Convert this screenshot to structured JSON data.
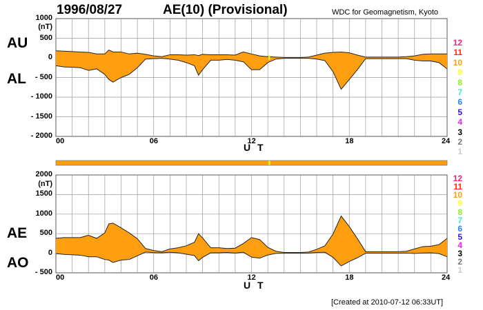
{
  "header": {
    "date": "1996/08/27",
    "title": "AE(10) (Provisional)",
    "source": "WDC for Geomagnetism, Kyoto"
  },
  "footer": {
    "created": "[Created at 2010-07-12 06:33UT]"
  },
  "colors": {
    "fill": "#ff9f10",
    "line": "#222222",
    "grid": "#999999",
    "bar": "#ff9f10",
    "bar_highlight": "#ffff20"
  },
  "station_legend": [
    {
      "label": "12",
      "color": "#ff1a7a"
    },
    {
      "label": "11",
      "color": "#ff2a10"
    },
    {
      "label": "10",
      "color": "#ff9f10"
    },
    {
      "label": "9",
      "color": "#ffff20"
    },
    {
      "label": "8",
      "color": "#90f020"
    },
    {
      "label": "7",
      "color": "#30f0d0"
    },
    {
      "label": "6",
      "color": "#2a80ff"
    },
    {
      "label": "5",
      "color": "#2a10f0"
    },
    {
      "label": "4",
      "color": "#f020f0"
    },
    {
      "label": "3",
      "color": "#000000"
    },
    {
      "label": "2",
      "color": "#777777"
    },
    {
      "label": "1",
      "color": "#cccccc"
    }
  ],
  "chart_data": [
    {
      "type": "area",
      "name": "AU/AL",
      "series_labels": [
        "AU",
        "AL"
      ],
      "ylabel": "(nT)",
      "xlabel": "U T",
      "ylim": [
        -2000,
        1000
      ],
      "yticks": [
        "1000",
        "500",
        "0",
        "- 500",
        "- 1000",
        "- 1500",
        "- 2000"
      ],
      "xlim": [
        0,
        24
      ],
      "xticks": [
        "00",
        "06",
        "12",
        "18",
        "24"
      ],
      "grid": true
    },
    {
      "type": "area",
      "name": "AE/AO",
      "series_labels": [
        "AE",
        "AO"
      ],
      "ylabel": "(nT)",
      "xlabel": "U T",
      "ylim": [
        -500,
        2000
      ],
      "yticks": [
        "2000",
        "1500",
        "1000",
        "500",
        "0",
        "- 500"
      ],
      "xlim": [
        0,
        24
      ],
      "xticks": [
        "00",
        "06",
        "12",
        "18",
        "24"
      ],
      "grid": true
    }
  ],
  "series": {
    "hours": [
      0,
      0.5,
      1,
      1.5,
      2,
      2.5,
      3,
      3.25,
      3.5,
      4,
      4.5,
      5,
      5.5,
      6,
      6.5,
      7,
      7.5,
      8,
      8.5,
      8.75,
      9,
      9.5,
      10,
      10.5,
      11,
      11.5,
      12,
      12.5,
      13,
      13.5,
      14,
      14.5,
      15,
      15.5,
      16,
      16.5,
      17,
      17.5,
      18,
      18.5,
      19,
      19.5,
      20,
      20.5,
      21,
      21.5,
      22,
      22.5,
      23,
      23.5,
      24
    ],
    "AU": [
      180,
      170,
      160,
      150,
      140,
      100,
      100,
      200,
      150,
      150,
      100,
      120,
      90,
      50,
      30,
      80,
      80,
      70,
      80,
      60,
      90,
      80,
      80,
      80,
      70,
      150,
      100,
      50,
      30,
      20,
      10,
      10,
      10,
      20,
      70,
      120,
      140,
      150,
      130,
      70,
      20,
      20,
      20,
      20,
      20,
      30,
      50,
      90,
      100,
      100,
      100
    ],
    "AL": [
      -200,
      -230,
      -240,
      -250,
      -320,
      -280,
      -420,
      -550,
      -620,
      -500,
      -420,
      -250,
      -30,
      -20,
      -10,
      -30,
      -60,
      -120,
      -200,
      -440,
      -300,
      -60,
      -60,
      -40,
      -60,
      -100,
      -300,
      -300,
      -120,
      -30,
      -10,
      -10,
      -10,
      -10,
      -30,
      -70,
      -350,
      -800,
      -550,
      -300,
      -20,
      -20,
      -20,
      -20,
      -20,
      -20,
      -60,
      -80,
      -80,
      -120,
      -280
    ]
  },
  "data_coverage_bar": {
    "stations_all_day": 10,
    "reduced_interval_hours": [
      13.05,
      13.15
    ],
    "reduced_stations": 9
  }
}
